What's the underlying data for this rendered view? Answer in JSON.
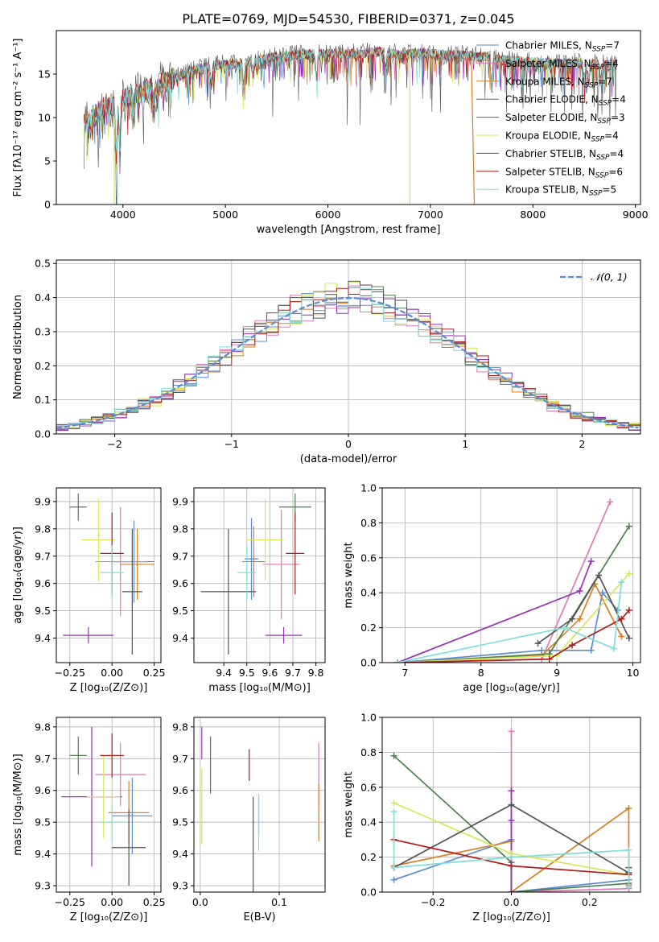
{
  "figure_title": "PLATE=0769, MJD=54530, FIBERID=0371, z=0.045",
  "colors": {
    "chabrier_miles": "#5b8bd8",
    "salpeter_miles": "#e07ab8",
    "kroupa_miles": "#d97f22",
    "chabrier_elodie": "#4f7f4f",
    "salpeter_elodie": "#9a2fb8",
    "kroupa_elodie": "#d6e85a",
    "chabrier_stelib": "#555555",
    "salpeter_stelib": "#b31a1a",
    "kroupa_stelib": "#7fdede"
  },
  "legend_models": [
    {
      "name": "Chabrier MILES",
      "nssp": "7",
      "color_key": "chabrier_miles"
    },
    {
      "name": "Salpeter MILES",
      "nssp": "4",
      "color_key": "salpeter_miles"
    },
    {
      "name": "Kroupa MILES",
      "nssp": "7",
      "color_key": "kroupa_miles"
    },
    {
      "name": "Chabrier ELODIE",
      "nssp": "4",
      "color_key": "chabrier_elodie"
    },
    {
      "name": "Salpeter ELODIE",
      "nssp": "3",
      "color_key": "salpeter_elodie"
    },
    {
      "name": "Kroupa ELODIE",
      "nssp": "4",
      "color_key": "kroupa_elodie"
    },
    {
      "name": "Chabrier STELIB",
      "nssp": "4",
      "color_key": "chabrier_stelib"
    },
    {
      "name": "Salpeter STELIB",
      "nssp": "6",
      "color_key": "salpeter_stelib"
    },
    {
      "name": "Kroupa STELIB",
      "nssp": "5",
      "color_key": "kroupa_stelib"
    }
  ],
  "chart_data": [
    {
      "id": "spectrum",
      "type": "line",
      "xlabel": "wavelength [Angstrom, rest frame]",
      "ylabel": "Flux [fλ10⁻¹⁷ erg cm⁻² s⁻¹ A⁻¹]",
      "xlim": [
        3350,
        9050
      ],
      "ylim": [
        0,
        20
      ],
      "xticks": [
        4000,
        5000,
        6000,
        7000,
        8000,
        9000
      ],
      "yticks": [
        0,
        5,
        10,
        15
      ],
      "continuum": {
        "x": [
          3620,
          3700,
          3800,
          3900,
          4000,
          4100,
          4200,
          4300,
          4400,
          4500,
          4700,
          4900,
          5100,
          5300,
          5500,
          5700,
          5900,
          6100,
          6300,
          6500,
          6700,
          6900,
          7100,
          7300,
          7500,
          7700,
          7900,
          8100,
          8300,
          8500,
          8700,
          8820
        ],
        "y": [
          9.5,
          10,
          11,
          11.5,
          12,
          12.5,
          13,
          13.5,
          14,
          14.5,
          15.5,
          16,
          16.2,
          16.5,
          17,
          17.2,
          17.3,
          17.4,
          17.3,
          17.6,
          17.2,
          17.4,
          17.2,
          17.2,
          17,
          16.6,
          16.4,
          16.3,
          16.2,
          16.2,
          16.1,
          16.0
        ]
      },
      "legend": "top-right",
      "grid": false
    },
    {
      "id": "residual_hist",
      "type": "line",
      "xlabel": "(data-model)/error",
      "ylabel": "Normed distribution",
      "xlim": [
        -2.5,
        2.5
      ],
      "ylim": [
        0,
        0.51
      ],
      "xticks": [
        -2,
        -1,
        0,
        1,
        2
      ],
      "yticks": [
        0.0,
        0.1,
        0.2,
        0.3,
        0.4,
        0.5
      ],
      "bin_width": 0.1,
      "reference_curve_label": "𝒩(0, 1)",
      "legend": "top-right",
      "grid": true
    },
    {
      "id": "z_vs_age",
      "type": "scatter",
      "xlabel": "Z [log₁₀(Z/Z⊙)]",
      "ylabel": "age  [log₁₀(age/yr)]",
      "xlim": [
        -0.33,
        0.29
      ],
      "ylim": [
        9.31,
        9.95
      ],
      "xticks": [
        -0.25,
        0.0,
        0.25
      ],
      "yticks": [
        9.4,
        9.5,
        9.6,
        9.7,
        9.8,
        9.9
      ],
      "points": [
        {
          "model": "chabrier_miles",
          "x": 0.13,
          "y": 9.68,
          "xerr": 0.12,
          "yerr": 0.15
        },
        {
          "model": "salpeter_miles",
          "x": 0.05,
          "y": 9.68,
          "xerr": 0.15,
          "yerr": 0.2
        },
        {
          "model": "kroupa_miles",
          "x": 0.15,
          "y": 9.67,
          "xerr": 0.1,
          "yerr": 0.13
        },
        {
          "model": "chabrier_elodie",
          "x": -0.2,
          "y": 9.88,
          "xerr": 0.05,
          "yerr": 0.05
        },
        {
          "model": "salpeter_elodie",
          "x": -0.14,
          "y": 9.41,
          "xerr": 0.15,
          "yerr": 0.03
        },
        {
          "model": "kroupa_elodie",
          "x": -0.08,
          "y": 9.76,
          "xerr": 0.1,
          "yerr": 0.15
        },
        {
          "model": "chabrier_stelib",
          "x": 0.12,
          "y": 9.57,
          "xerr": 0.06,
          "yerr": 0.23
        },
        {
          "model": "salpeter_stelib",
          "x": 0.0,
          "y": 9.71,
          "xerr": 0.07,
          "yerr": 0.15
        },
        {
          "model": "kroupa_stelib",
          "x": 0.0,
          "y": 9.64,
          "xerr": 0.07,
          "yerr": 0.1
        }
      ],
      "grid": true
    },
    {
      "id": "mass_vs_age",
      "type": "scatter",
      "xlabel": "mass [log₁₀(M/M⊙)]",
      "ylabel": "",
      "xlim": [
        9.27,
        9.84
      ],
      "ylim": [
        9.31,
        9.95
      ],
      "xticks": [
        9.4,
        9.5,
        9.6,
        9.7,
        9.8
      ],
      "yticks": [
        9.4,
        9.5,
        9.6,
        9.7,
        9.8,
        9.9
      ],
      "points": [
        {
          "model": "chabrier_miles",
          "x": 9.52,
          "y": 9.69,
          "xerr": 0.03,
          "yerr": 0.15
        },
        {
          "model": "salpeter_miles",
          "x": 9.65,
          "y": 9.67,
          "xerr": 0.08,
          "yerr": 0.2
        },
        {
          "model": "kroupa_miles",
          "x": 9.53,
          "y": 9.68,
          "xerr": 0.05,
          "yerr": 0.13
        },
        {
          "model": "chabrier_elodie",
          "x": 9.71,
          "y": 9.88,
          "xerr": 0.07,
          "yerr": 0.05
        },
        {
          "model": "salpeter_elodie",
          "x": 9.66,
          "y": 9.41,
          "xerr": 0.08,
          "yerr": 0.03
        },
        {
          "model": "kroupa_elodie",
          "x": 9.58,
          "y": 9.76,
          "xerr": 0.08,
          "yerr": 0.15
        },
        {
          "model": "chabrier_stelib",
          "x": 9.42,
          "y": 9.57,
          "xerr": 0.12,
          "yerr": 0.23
        },
        {
          "model": "salpeter_stelib",
          "x": 9.71,
          "y": 9.71,
          "xerr": 0.04,
          "yerr": 0.15
        },
        {
          "model": "kroupa_stelib",
          "x": 9.5,
          "y": 9.64,
          "xerr": 0.04,
          "yerr": 0.1
        }
      ],
      "grid": true
    },
    {
      "id": "age_vs_massweight",
      "type": "line",
      "xlabel": "age  [log₁₀(age/yr)]",
      "ylabel": "mass weight",
      "xlim": [
        6.7,
        10.1
      ],
      "ylim": [
        0,
        1
      ],
      "xticks": [
        7,
        8,
        9,
        10
      ],
      "yticks": [
        0.0,
        0.2,
        0.4,
        0.6,
        0.8,
        1.0
      ],
      "series": [
        {
          "model": "chabrier_miles",
          "x": [
            6.9,
            8.8,
            9.45,
            9.6,
            9.8
          ],
          "y": [
            0.0,
            0.07,
            0.07,
            0.4,
            0.3
          ]
        },
        {
          "model": "salpeter_miles",
          "x": [
            6.9,
            8.8,
            9.7
          ],
          "y": [
            0.0,
            0.02,
            0.92
          ]
        },
        {
          "model": "kroupa_miles",
          "x": [
            6.9,
            8.8,
            9.3,
            9.5,
            9.85
          ],
          "y": [
            0.0,
            0.04,
            0.25,
            0.45,
            0.15
          ]
        },
        {
          "model": "chabrier_elodie",
          "x": [
            6.9,
            8.9,
            9.95
          ],
          "y": [
            0.0,
            0.05,
            0.78
          ]
        },
        {
          "model": "salpeter_elodie",
          "x": [
            6.9,
            9.3,
            9.45
          ],
          "y": [
            0.0,
            0.41,
            0.58
          ]
        },
        {
          "model": "kroupa_elodie",
          "x": [
            6.9,
            9.0,
            9.95
          ],
          "y": [
            0.0,
            0.04,
            0.51
          ]
        },
        {
          "model": "chabrier_stelib",
          "x": [
            8.75,
            9.2,
            9.55,
            9.95
          ],
          "y": [
            0.11,
            0.25,
            0.5,
            0.14
          ]
        },
        {
          "model": "salpeter_stelib",
          "x": [
            6.9,
            8.9,
            9.2,
            9.85,
            9.95
          ],
          "y": [
            0.0,
            0.02,
            0.1,
            0.25,
            0.3
          ]
        },
        {
          "model": "kroupa_stelib",
          "x": [
            6.9,
            9.1,
            9.75,
            9.85
          ],
          "y": [
            0.0,
            0.2,
            0.08,
            0.46
          ]
        }
      ],
      "grid": true
    },
    {
      "id": "z_vs_mass",
      "type": "scatter",
      "xlabel": "Z [log₁₀(Z/Z⊙)]",
      "ylabel": "mass [log₁₀(M/M⊙)]",
      "xlim": [
        -0.33,
        0.29
      ],
      "ylim": [
        9.28,
        9.83
      ],
      "xticks": [
        -0.25,
        0.0,
        0.25
      ],
      "yticks": [
        9.3,
        9.4,
        9.5,
        9.6,
        9.7,
        9.8
      ],
      "points": [
        {
          "model": "chabrier_miles",
          "x": 0.12,
          "y": 9.52,
          "xerr": 0.12,
          "yerr": 0.12
        },
        {
          "model": "salpeter_miles",
          "x": 0.05,
          "y": 9.65,
          "xerr": 0.15,
          "yerr": 0.1
        },
        {
          "model": "kroupa_miles",
          "x": 0.1,
          "y": 9.53,
          "xerr": 0.12,
          "yerr": 0.1
        },
        {
          "model": "chabrier_elodie",
          "x": -0.2,
          "y": 9.71,
          "xerr": 0.05,
          "yerr": 0.06
        },
        {
          "model": "salpeter_elodie",
          "x": -0.12,
          "y": 9.58,
          "xerr": 0.18,
          "yerr": 0.22
        },
        {
          "model": "kroupa_elodie",
          "x": -0.05,
          "y": 9.58,
          "xerr": 0.1,
          "yerr": 0.13
        },
        {
          "model": "chabrier_stelib",
          "x": 0.1,
          "y": 9.42,
          "xerr": 0.1,
          "yerr": 0.12
        },
        {
          "model": "salpeter_stelib",
          "x": 0.0,
          "y": 9.71,
          "xerr": 0.07,
          "yerr": 0.07
        },
        {
          "model": "kroupa_stelib",
          "x": 0.0,
          "y": 9.5,
          "xerr": 0.07,
          "yerr": 0.06
        }
      ],
      "grid": true
    },
    {
      "id": "ebv_vs_mass",
      "type": "scatter",
      "xlabel": "E(B-V)",
      "ylabel": "",
      "xlim": [
        -0.008,
        0.158
      ],
      "ylim": [
        9.28,
        9.83
      ],
      "xticks": [
        0.0,
        0.1
      ],
      "yticks": [
        9.3,
        9.4,
        9.5,
        9.6,
        9.7,
        9.8
      ],
      "points": [
        {
          "model": "chabrier_miles",
          "x": 0.074,
          "y": 9.52,
          "xerr": 0.0,
          "yerr": 0.06
        },
        {
          "model": "salpeter_miles",
          "x": 0.15,
          "y": 9.65,
          "xerr": 0.0,
          "yerr": 0.1
        },
        {
          "model": "kroupa_miles",
          "x": 0.15,
          "y": 9.53,
          "xerr": 0.0,
          "yerr": 0.09
        },
        {
          "model": "chabrier_elodie",
          "x": 0.013,
          "y": 9.68,
          "xerr": 0.0,
          "yerr": 0.09
        },
        {
          "model": "salpeter_elodie",
          "x": 0.002,
          "y": 9.75,
          "xerr": 0.0,
          "yerr": 0.05
        },
        {
          "model": "kroupa_elodie",
          "x": 0.002,
          "y": 9.55,
          "xerr": 0.0,
          "yerr": 0.12
        },
        {
          "model": "chabrier_stelib",
          "x": 0.067,
          "y": 9.42,
          "xerr": 0.0,
          "yerr": 0.16
        },
        {
          "model": "salpeter_stelib",
          "x": 0.062,
          "y": 9.68,
          "xerr": 0.0,
          "yerr": 0.05
        },
        {
          "model": "kroupa_stelib",
          "x": 0.074,
          "y": 9.5,
          "xerr": 0.0,
          "yerr": 0.09
        }
      ],
      "grid": true
    },
    {
      "id": "z_vs_massweight",
      "type": "line",
      "xlabel": "Z [log₁₀(Z/Z⊙)]",
      "ylabel": "mass weight",
      "xlim": [
        -0.33,
        0.33
      ],
      "ylim": [
        0,
        1
      ],
      "xticks": [
        -0.2,
        0.0,
        0.2
      ],
      "yticks": [
        0.0,
        0.2,
        0.4,
        0.6,
        0.8,
        1.0
      ],
      "series": [
        {
          "model": "chabrier_miles",
          "x": [
            -0.3,
            0.0,
            0.0,
            0.3,
            0.3
          ],
          "y": [
            0.07,
            0.3,
            0.0,
            0.07,
            0.03
          ]
        },
        {
          "model": "salpeter_miles",
          "x": [
            0.0,
            0.0,
            0.3
          ],
          "y": [
            0.92,
            0.0,
            0.02
          ]
        },
        {
          "model": "kroupa_miles",
          "x": [
            -0.3,
            0.0,
            0.0,
            0.3,
            0.3
          ],
          "y": [
            0.15,
            0.29,
            0.0,
            0.48,
            0.04
          ]
        },
        {
          "model": "chabrier_elodie",
          "x": [
            -0.3,
            0.0,
            0.0,
            0.3
          ],
          "y": [
            0.78,
            0.17,
            0.0,
            0.05
          ]
        },
        {
          "model": "salpeter_elodie",
          "x": [
            0.0,
            0.0,
            0.0
          ],
          "y": [
            0.58,
            0.41,
            0.0
          ]
        },
        {
          "model": "kroupa_elodie",
          "x": [
            -0.3,
            0.0,
            0.3
          ],
          "y": [
            0.51,
            0.22,
            0.1
          ]
        },
        {
          "model": "chabrier_stelib",
          "x": [
            -0.3,
            0.0,
            0.3,
            0.3
          ],
          "y": [
            0.14,
            0.5,
            0.11,
            0.14
          ]
        },
        {
          "model": "salpeter_stelib",
          "x": [
            -0.3,
            0.0,
            0.3
          ],
          "y": [
            0.3,
            0.15,
            0.1
          ]
        },
        {
          "model": "kroupa_stelib",
          "x": [
            -0.3,
            -0.3,
            0.0,
            0.3,
            0.3
          ],
          "y": [
            0.46,
            0.14,
            0.2,
            0.24,
            0.03
          ]
        }
      ],
      "grid": true
    }
  ]
}
